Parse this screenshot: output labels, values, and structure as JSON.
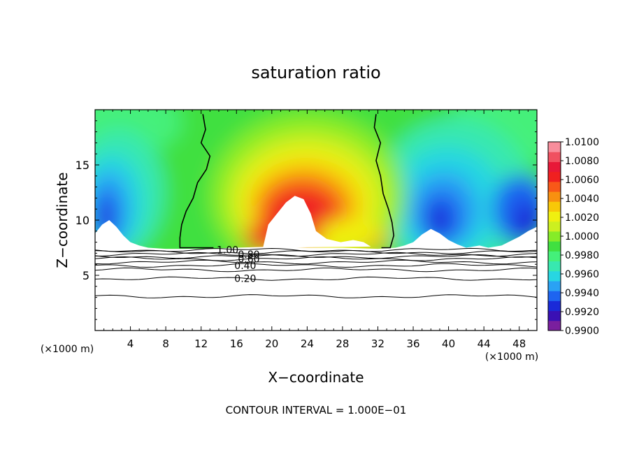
{
  "chart_data": {
    "type": "heatmap",
    "title": "saturation ratio",
    "xlabel": "X−coordinate",
    "ylabel": "Z−coordinate",
    "x_unit_label_left": "(×1000 m)",
    "x_unit_label_right": "(×1000 m)",
    "footer": "CONTOUR INTERVAL = 1.000E−01",
    "xlim": [
      0,
      50
    ],
    "ylim": [
      0,
      20
    ],
    "x_ticks": [
      4,
      8,
      12,
      16,
      20,
      24,
      28,
      32,
      36,
      40,
      44,
      48
    ],
    "y_ticks": [
      5,
      10,
      15
    ],
    "colorbar": {
      "ticks": [
        "0.9900",
        "0.9920",
        "0.9940",
        "0.9960",
        "0.9980",
        "1.0000",
        "1.0020",
        "1.0040",
        "1.0060",
        "1.0080",
        "1.0100"
      ],
      "colors": [
        "#7a1f9e",
        "#3a10b4",
        "#1a2ad8",
        "#1e64f0",
        "#2aa2f4",
        "#28d6e2",
        "#38e8b0",
        "#44f07a",
        "#40e040",
        "#86ec28",
        "#ccf020",
        "#f0f010",
        "#f8c808",
        "#f89010",
        "#f85818",
        "#f02020",
        "#e81838",
        "#f05060",
        "#f88e9c"
      ]
    },
    "bottom_contours": [
      {
        "label": "1.00",
        "z": 7.3
      },
      {
        "label": "0.80",
        "z": 6.9
      },
      {
        "label": "0.60",
        "z": 6.5
      },
      {
        "label": "0.40",
        "z": 5.9
      },
      {
        "label": "0.20",
        "z": 4.7
      },
      {
        "label": "",
        "z": 7.1
      },
      {
        "label": "",
        "z": 6.7
      },
      {
        "label": "",
        "z": 6.2
      },
      {
        "label": "",
        "z": 5.5
      },
      {
        "label": "",
        "z": 3.1
      }
    ],
    "unity_contours": [
      {
        "label": "",
        "points": [
          [
            12.2,
            19.6
          ],
          [
            12.5,
            18.2
          ],
          [
            12.0,
            17.0
          ],
          [
            13.0,
            15.8
          ],
          [
            12.6,
            14.6
          ],
          [
            11.6,
            13.4
          ],
          [
            11.1,
            12.0
          ],
          [
            10.3,
            10.8
          ],
          [
            9.8,
            9.6
          ],
          [
            9.6,
            8.4
          ],
          [
            9.6,
            7.5
          ],
          [
            13.4,
            7.5
          ]
        ]
      },
      {
        "label": "",
        "points": [
          [
            31.8,
            19.6
          ],
          [
            31.6,
            18.4
          ],
          [
            32.3,
            17.0
          ],
          [
            31.8,
            15.4
          ],
          [
            32.3,
            14.0
          ],
          [
            32.6,
            12.4
          ],
          [
            33.2,
            11.0
          ],
          [
            33.6,
            9.8
          ],
          [
            33.8,
            8.6
          ],
          [
            33.4,
            7.5
          ],
          [
            32.4,
            7.5
          ]
        ]
      }
    ],
    "terrain_z": [
      [
        0.0,
        8.8
      ],
      [
        0.8,
        9.6
      ],
      [
        1.6,
        10.0
      ],
      [
        2.4,
        9.4
      ],
      [
        3.2,
        8.6
      ],
      [
        4.0,
        8.0
      ],
      [
        5.0,
        7.7
      ],
      [
        6.0,
        7.5
      ],
      [
        8.0,
        7.4
      ],
      [
        12.0,
        7.4
      ],
      [
        16.0,
        7.5
      ],
      [
        20.0,
        7.6
      ],
      [
        24.0,
        7.5
      ],
      [
        28.0,
        7.5
      ],
      [
        32.0,
        7.4
      ],
      [
        34.0,
        7.5
      ],
      [
        35.0,
        7.7
      ],
      [
        36.0,
        8.0
      ],
      [
        37.0,
        8.7
      ],
      [
        38.0,
        9.2
      ],
      [
        39.0,
        8.8
      ],
      [
        40.0,
        8.2
      ],
      [
        41.0,
        7.8
      ],
      [
        42.0,
        7.5
      ],
      [
        43.5,
        7.7
      ],
      [
        44.5,
        7.5
      ],
      [
        46.0,
        7.7
      ],
      [
        47.0,
        8.1
      ],
      [
        48.0,
        8.5
      ],
      [
        49.0,
        9.0
      ],
      [
        50.0,
        9.4
      ]
    ],
    "white_region_z": [
      [
        19.0,
        7.5
      ],
      [
        19.6,
        9.6
      ],
      [
        20.6,
        10.6
      ],
      [
        21.6,
        11.6
      ],
      [
        22.6,
        12.2
      ],
      [
        23.6,
        11.9
      ],
      [
        24.4,
        10.6
      ],
      [
        25.0,
        9.0
      ],
      [
        26.2,
        8.3
      ],
      [
        27.8,
        8.0
      ],
      [
        29.2,
        8.2
      ],
      [
        30.4,
        8.0
      ],
      [
        31.2,
        7.6
      ]
    ],
    "grid": false
  }
}
